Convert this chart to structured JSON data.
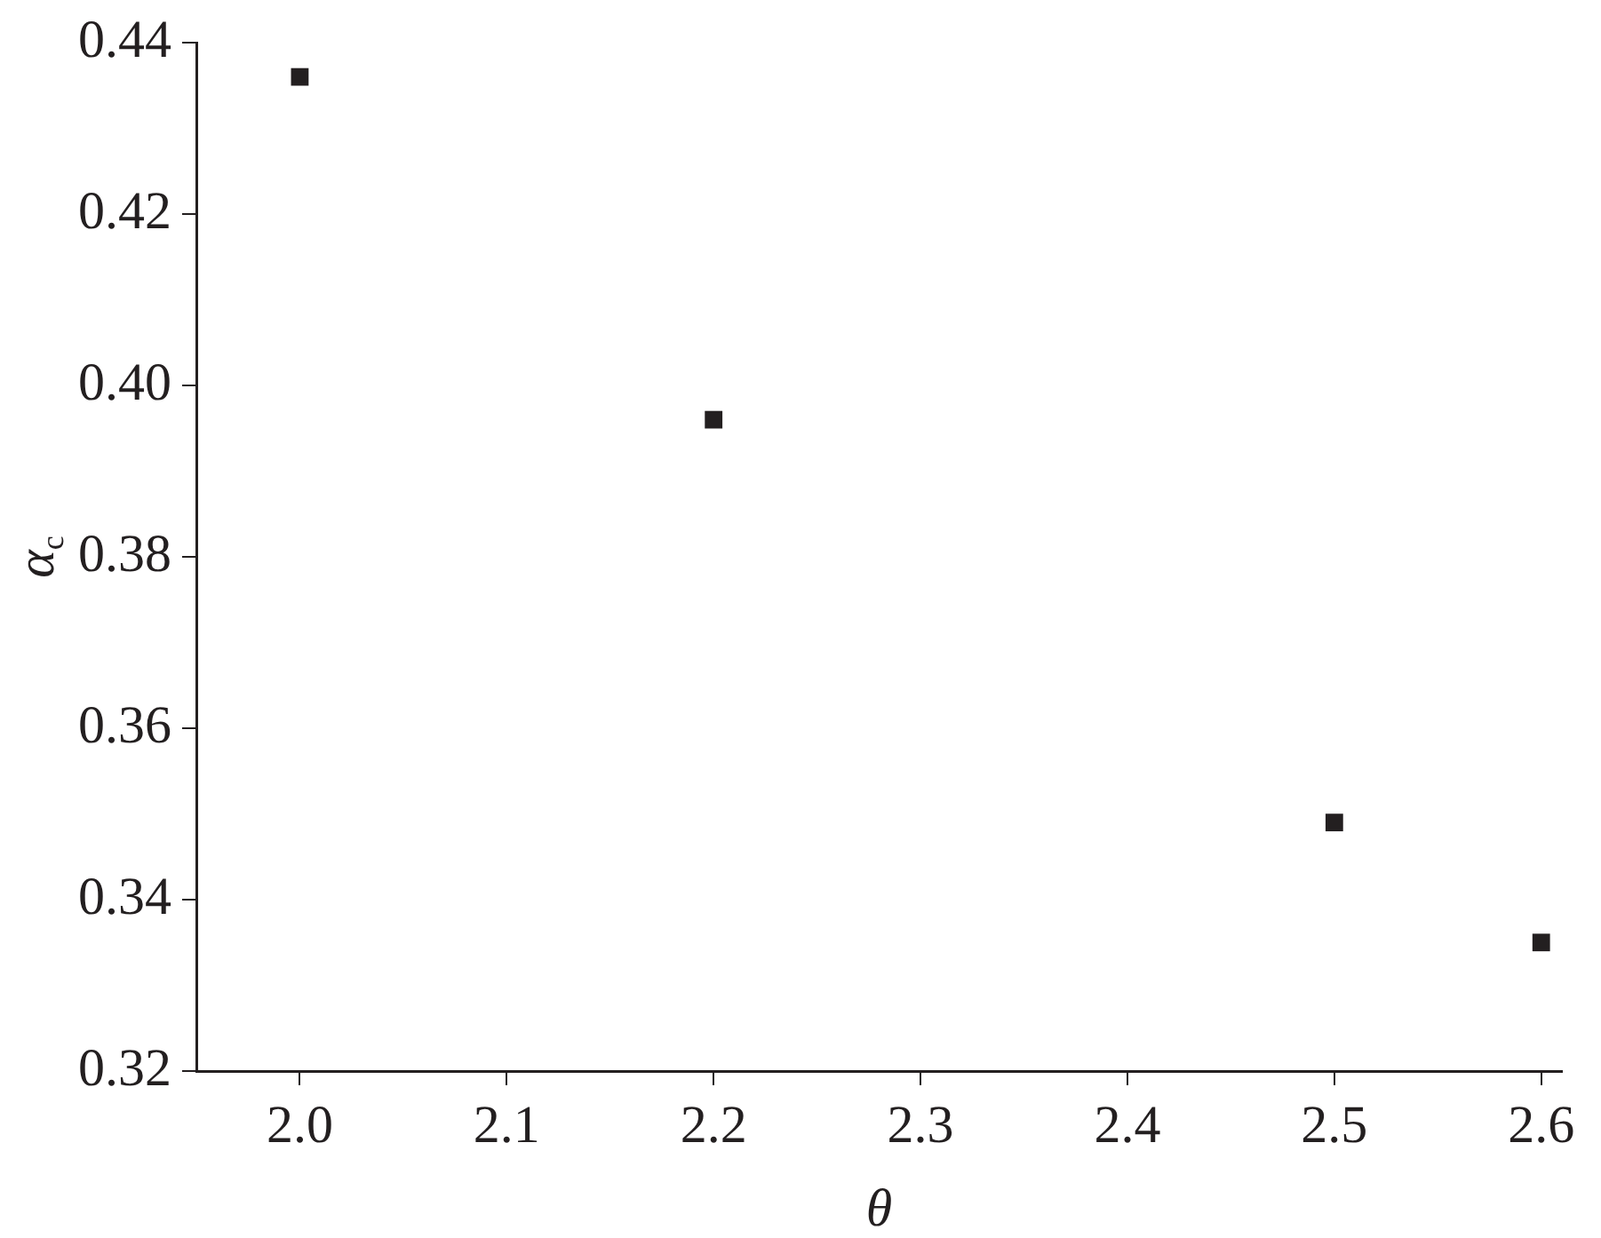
{
  "chart_data": {
    "type": "scatter",
    "xlabel": "θ",
    "ylabel": "α$_{c}$",
    "x": [
      2.0,
      2.2,
      2.5,
      2.6
    ],
    "series": [
      {
        "color": "#231f20",
        "values": [
          0.436,
          0.396,
          0.349,
          0.335
        ]
      }
    ],
    "marker": "square",
    "xlim": [
      1.95,
      2.61
    ],
    "xticks": [
      {
        "value": 2.0,
        "label": "2.0"
      },
      {
        "value": 2.1,
        "label": "2.1"
      },
      {
        "value": 2.2,
        "label": "2.2"
      },
      {
        "value": 2.3,
        "label": "2.3"
      },
      {
        "value": 2.4,
        "label": "2.4"
      },
      {
        "value": 2.5,
        "label": "2.5"
      },
      {
        "value": 2.6,
        "label": "2.6"
      }
    ],
    "ylim": [
      0.32,
      0.44
    ],
    "yticks": [
      {
        "value": 0.32,
        "label": "0.32"
      },
      {
        "value": 0.34,
        "label": "0.34"
      },
      {
        "value": 0.36,
        "label": "0.36"
      },
      {
        "value": 0.38,
        "label": "0.38"
      },
      {
        "value": 0.4,
        "label": "0.40"
      },
      {
        "value": 0.42,
        "label": "0.42"
      },
      {
        "value": 0.44,
        "label": "0.44"
      }
    ],
    "grid": false,
    "legend": false
  }
}
